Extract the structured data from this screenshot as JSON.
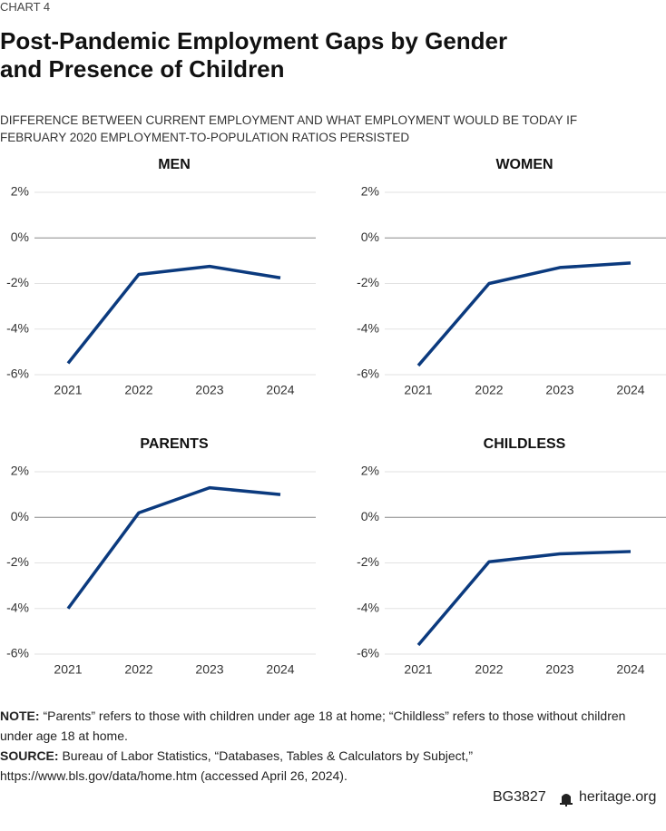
{
  "header": {
    "label": "CHART 4",
    "title": "Post-Pandemic Employment Gaps by Gender and Presence of Children",
    "subtitle": "DIFFERENCE BETWEEN CURRENT EMPLOYMENT AND WHAT EMPLOYMENT WOULD BE TODAY IF FEBRUARY 2020 EMPLOYMENT-TO-POPULATION RATIOS PERSISTED"
  },
  "chart_data": [
    {
      "type": "line",
      "title": "MEN",
      "categories": [
        "2021",
        "2022",
        "2023",
        "2024"
      ],
      "values": [
        -5.5,
        -1.6,
        -1.25,
        -1.75
      ],
      "color": "#0b3a7e",
      "ylim": [
        -6,
        2
      ],
      "yticks": [
        {
          "value": -6,
          "label": "-6%"
        },
        {
          "value": -4,
          "label": "-4%"
        },
        {
          "value": -2,
          "label": "-2%"
        },
        {
          "value": 0,
          "label": "0%"
        },
        {
          "value": 2,
          "label": "2%"
        }
      ],
      "grid": true
    },
    {
      "type": "line",
      "title": "WOMEN",
      "categories": [
        "2021",
        "2022",
        "2023",
        "2024"
      ],
      "values": [
        -5.6,
        -2.0,
        -1.3,
        -1.1
      ],
      "color": "#0b3a7e",
      "ylim": [
        -6,
        2
      ],
      "yticks": [
        {
          "value": -6,
          "label": "-6%"
        },
        {
          "value": -4,
          "label": "-4%"
        },
        {
          "value": -2,
          "label": "-2%"
        },
        {
          "value": 0,
          "label": "0%"
        },
        {
          "value": 2,
          "label": "2%"
        }
      ],
      "grid": true
    },
    {
      "type": "line",
      "title": "PARENTS",
      "categories": [
        "2021",
        "2022",
        "2023",
        "2024"
      ],
      "values": [
        -4.0,
        0.2,
        1.3,
        1.0
      ],
      "color": "#0b3a7e",
      "ylim": [
        -6,
        2
      ],
      "yticks": [
        {
          "value": -6,
          "label": "-6%"
        },
        {
          "value": -4,
          "label": "-4%"
        },
        {
          "value": -2,
          "label": "-2%"
        },
        {
          "value": 0,
          "label": "0%"
        },
        {
          "value": 2,
          "label": "2%"
        }
      ],
      "grid": true
    },
    {
      "type": "line",
      "title": "CHILDLESS",
      "categories": [
        "2021",
        "2022",
        "2023",
        "2024"
      ],
      "values": [
        -5.6,
        -1.95,
        -1.6,
        -1.5
      ],
      "color": "#0b3a7e",
      "ylim": [
        -6,
        2
      ],
      "yticks": [
        {
          "value": -6,
          "label": "-6%"
        },
        {
          "value": -4,
          "label": "-4%"
        },
        {
          "value": -2,
          "label": "-2%"
        },
        {
          "value": 0,
          "label": "0%"
        },
        {
          "value": 2,
          "label": "2%"
        }
      ],
      "grid": true
    }
  ],
  "note": {
    "label": "NOTE:",
    "text": "“Parents” refers to those with children under age 18 at home; “Childless” refers to those without children under age 18 at home."
  },
  "source": {
    "label": "SOURCE:",
    "text": "Bureau of Labor Statistics, “Databases, Tables & Calculators by Subject,” https://www.bls.gov/data/home.htm (accessed April 26, 2024)."
  },
  "footer": {
    "code": "BG3827",
    "site": "heritage.org"
  }
}
